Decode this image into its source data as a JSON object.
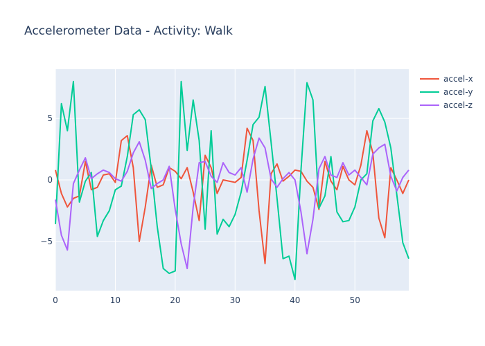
{
  "chart_data": {
    "type": "line",
    "title": "Accelerometer Data - Activity: Walk",
    "xlabel": "",
    "ylabel": "",
    "xlim": [
      0,
      59
    ],
    "ylim": [
      -9,
      9
    ],
    "x_ticks": [
      0,
      10,
      20,
      30,
      40,
      50
    ],
    "y_ticks": [
      -5,
      0,
      5
    ],
    "y_tick_labels": [
      "−5",
      "0",
      "5"
    ],
    "grid": true,
    "legend_position": "top-right",
    "background_color": "#e5ecf6",
    "x": [
      0,
      1,
      2,
      3,
      4,
      5,
      6,
      7,
      8,
      9,
      10,
      11,
      12,
      13,
      14,
      15,
      16,
      17,
      18,
      19,
      20,
      21,
      22,
      23,
      24,
      25,
      26,
      27,
      28,
      29,
      30,
      31,
      32,
      33,
      34,
      35,
      36,
      37,
      38,
      39,
      40,
      41,
      42,
      43,
      44,
      45,
      46,
      47,
      48,
      49,
      50,
      51,
      52,
      53,
      54,
      55,
      56,
      57,
      58,
      59
    ],
    "series": [
      {
        "name": "accel-x",
        "color": "#EF553B",
        "values": [
          0.8,
          -1.1,
          -2.2,
          -1.5,
          -1.3,
          1.5,
          -0.8,
          -0.6,
          0.4,
          0.5,
          -0.2,
          3.2,
          3.6,
          1.0,
          -5.0,
          -2.2,
          1.2,
          -0.6,
          -0.4,
          1.0,
          0.7,
          0.1,
          1.0,
          -1.0,
          -3.3,
          2.0,
          1.0,
          -1.1,
          0.0,
          -0.1,
          -0.2,
          0.2,
          4.2,
          3.2,
          -2.5,
          -6.8,
          0.5,
          1.3,
          -0.1,
          0.3,
          0.8,
          0.7,
          -0.1,
          -0.6,
          -2.4,
          1.5,
          -0.1,
          -0.8,
          1.1,
          0.0,
          -0.4,
          1.2,
          4.0,
          2.2,
          -3.1,
          -4.7,
          1.0,
          0.0,
          -1.1,
          0.0
        ]
      },
      {
        "name": "accel-y",
        "color": "#00CC96",
        "values": [
          -3.6,
          6.2,
          4.0,
          8.0,
          -1.8,
          -0.1,
          0.6,
          -4.6,
          -3.3,
          -2.5,
          -0.8,
          -0.5,
          1.9,
          5.3,
          5.7,
          4.9,
          0.9,
          -3.8,
          -7.2,
          -7.6,
          -7.4,
          8.0,
          2.4,
          6.5,
          3.2,
          -4.0,
          4.0,
          -4.4,
          -3.2,
          -3.8,
          -2.8,
          -1.0,
          1.6,
          4.5,
          5.1,
          7.6,
          3.1,
          -1.5,
          -6.4,
          -6.2,
          -8.1,
          0.8,
          7.9,
          6.5,
          -2.3,
          -1.3,
          1.9,
          -2.6,
          -3.4,
          -3.3,
          -2.2,
          0.0,
          0.5,
          4.8,
          5.8,
          4.7,
          2.6,
          -1.2,
          -5.1,
          -6.4
        ]
      },
      {
        "name": "accel-z",
        "color": "#AB63FA",
        "values": [
          -1.6,
          -4.5,
          -5.7,
          -0.3,
          0.8,
          1.8,
          0.1,
          0.5,
          0.8,
          0.6,
          0.1,
          -0.1,
          0.7,
          2.2,
          3.1,
          1.6,
          -0.7,
          -0.3,
          0.0,
          1.1,
          -2.4,
          -5.2,
          -7.2,
          -2.2,
          1.4,
          1.5,
          0.3,
          -0.2,
          1.4,
          0.6,
          0.4,
          1.0,
          -1.0,
          1.7,
          3.4,
          2.6,
          0.1,
          -0.6,
          0.1,
          0.6,
          0.0,
          -2.6,
          -6.0,
          -3.2,
          0.9,
          1.9,
          0.4,
          0.2,
          1.4,
          0.4,
          0.8,
          0.2,
          -0.4,
          2.1,
          2.6,
          2.9,
          0.3,
          -0.9,
          0.2,
          0.8
        ]
      }
    ]
  }
}
